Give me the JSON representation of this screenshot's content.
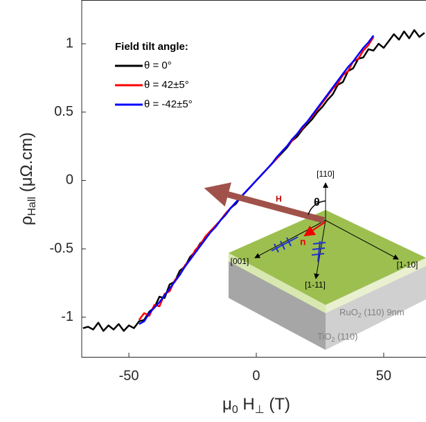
{
  "chart_data": {
    "type": "line",
    "x_label": [
      "μ",
      "0",
      "H",
      "⊥",
      "(T)"
    ],
    "y_label": [
      "ρ",
      "Hall",
      "(μΩ.cm)"
    ],
    "legend_title": "Field tilt angle:",
    "legend": "upper left",
    "xlim": [
      -68.5,
      66.6
    ],
    "ylim": [
      -1.29,
      1.32
    ],
    "xticks": [
      -50,
      0,
      50
    ],
    "yticks": [
      -1,
      -0.5,
      0,
      0.5,
      1
    ],
    "series": [
      {
        "name": "θ = 0°",
        "color": "#000000",
        "x": [
          -68,
          -66,
          -64,
          -62,
          -60,
          -58,
          -56,
          -54,
          -52,
          -50,
          -48,
          -46,
          -44,
          -42,
          -40,
          -38,
          -36,
          -34,
          -32,
          -30,
          -28,
          -26,
          -24,
          -22,
          -20,
          -18,
          -16,
          -14,
          -12,
          -10,
          -8,
          -6,
          -4,
          -2,
          0,
          2,
          4,
          6,
          8,
          10,
          12,
          14,
          16,
          18,
          20,
          22,
          24,
          26,
          28,
          30,
          32,
          34,
          36,
          38,
          40,
          42,
          44,
          46,
          48,
          50,
          52,
          54,
          56,
          58,
          60,
          62,
          64,
          66
        ],
        "values": [
          -1.08,
          -1.07,
          -1.09,
          -1.04,
          -1.1,
          -1.06,
          -1.09,
          -1.05,
          -1.1,
          -1.06,
          -1.08,
          -1.03,
          -1.02,
          -0.96,
          -0.93,
          -0.85,
          -0.86,
          -0.76,
          -0.74,
          -0.66,
          -0.63,
          -0.56,
          -0.52,
          -0.46,
          -0.43,
          -0.37,
          -0.34,
          -0.29,
          -0.25,
          -0.2,
          -0.17,
          -0.12,
          -0.08,
          -0.04,
          0,
          0.04,
          0.08,
          0.12,
          0.16,
          0.2,
          0.24,
          0.29,
          0.32,
          0.37,
          0.41,
          0.45,
          0.5,
          0.54,
          0.59,
          0.63,
          0.7,
          0.72,
          0.8,
          0.82,
          0.89,
          0.9,
          0.96,
          0.95,
          1.0,
          0.97,
          1.02,
          1.07,
          1.03,
          1.09,
          1.04,
          1.1,
          1.05,
          1.08
        ]
      },
      {
        "name": "θ = 42±5°",
        "color": "#ff0000",
        "x": [
          -46,
          -44,
          -42,
          -40,
          -38,
          -36,
          -34,
          -32,
          -30,
          -28,
          -26,
          -24,
          -22,
          -20,
          -18,
          -16,
          -14,
          -12,
          -10,
          -8,
          -6,
          -4,
          -2,
          0,
          2,
          4,
          6,
          8,
          10,
          12,
          14,
          16,
          18,
          20,
          22,
          24,
          26,
          28,
          30,
          32,
          34,
          36,
          38,
          40,
          42,
          44,
          46
        ],
        "values": [
          -1.02,
          -0.97,
          -0.99,
          -0.91,
          -0.92,
          -0.83,
          -0.81,
          -0.73,
          -0.69,
          -0.62,
          -0.58,
          -0.51,
          -0.47,
          -0.41,
          -0.37,
          -0.33,
          -0.29,
          -0.24,
          -0.2,
          -0.16,
          -0.12,
          -0.08,
          -0.04,
          0,
          0.04,
          0.08,
          0.12,
          0.16,
          0.21,
          0.25,
          0.29,
          0.34,
          0.38,
          0.43,
          0.47,
          0.52,
          0.57,
          0.62,
          0.67,
          0.71,
          0.77,
          0.8,
          0.87,
          0.89,
          0.95,
          0.99,
          1.05
        ]
      },
      {
        "name": "θ = -42±5°",
        "color": "#0000ff",
        "x": [
          -46,
          -44,
          -42,
          -40,
          -38,
          -36,
          -34,
          -32,
          -30,
          -28,
          -26,
          -24,
          -22,
          -20,
          -18,
          -16,
          -14,
          -12,
          -10,
          -8,
          -6,
          -4,
          -2,
          0,
          2,
          4,
          6,
          8,
          10,
          12,
          14,
          16,
          18,
          20,
          22,
          24,
          26,
          28,
          30,
          32,
          34,
          36,
          38,
          40,
          42,
          44,
          46
        ],
        "values": [
          -1.05,
          -1.03,
          -0.97,
          -0.93,
          -0.89,
          -0.84,
          -0.79,
          -0.74,
          -0.69,
          -0.63,
          -0.58,
          -0.53,
          -0.48,
          -0.43,
          -0.38,
          -0.34,
          -0.29,
          -0.25,
          -0.2,
          -0.16,
          -0.12,
          -0.08,
          -0.04,
          0,
          0.04,
          0.08,
          0.12,
          0.17,
          0.21,
          0.25,
          0.3,
          0.34,
          0.39,
          0.43,
          0.48,
          0.53,
          0.58,
          0.63,
          0.68,
          0.73,
          0.78,
          0.83,
          0.87,
          0.92,
          0.97,
          1.01,
          1.06
        ]
      }
    ],
    "inset": {
      "axis_110": "[110]",
      "field": "H",
      "angle": "θ",
      "normal": "n",
      "axis_001": "[001]",
      "axis_1m11": "[1-11]",
      "axis_1m10": "[1-10]",
      "layer_top": [
        "RuO",
        "2",
        " (110) 9nm"
      ],
      "layer_bottom": [
        "TiO",
        "2",
        " (110)"
      ]
    }
  }
}
